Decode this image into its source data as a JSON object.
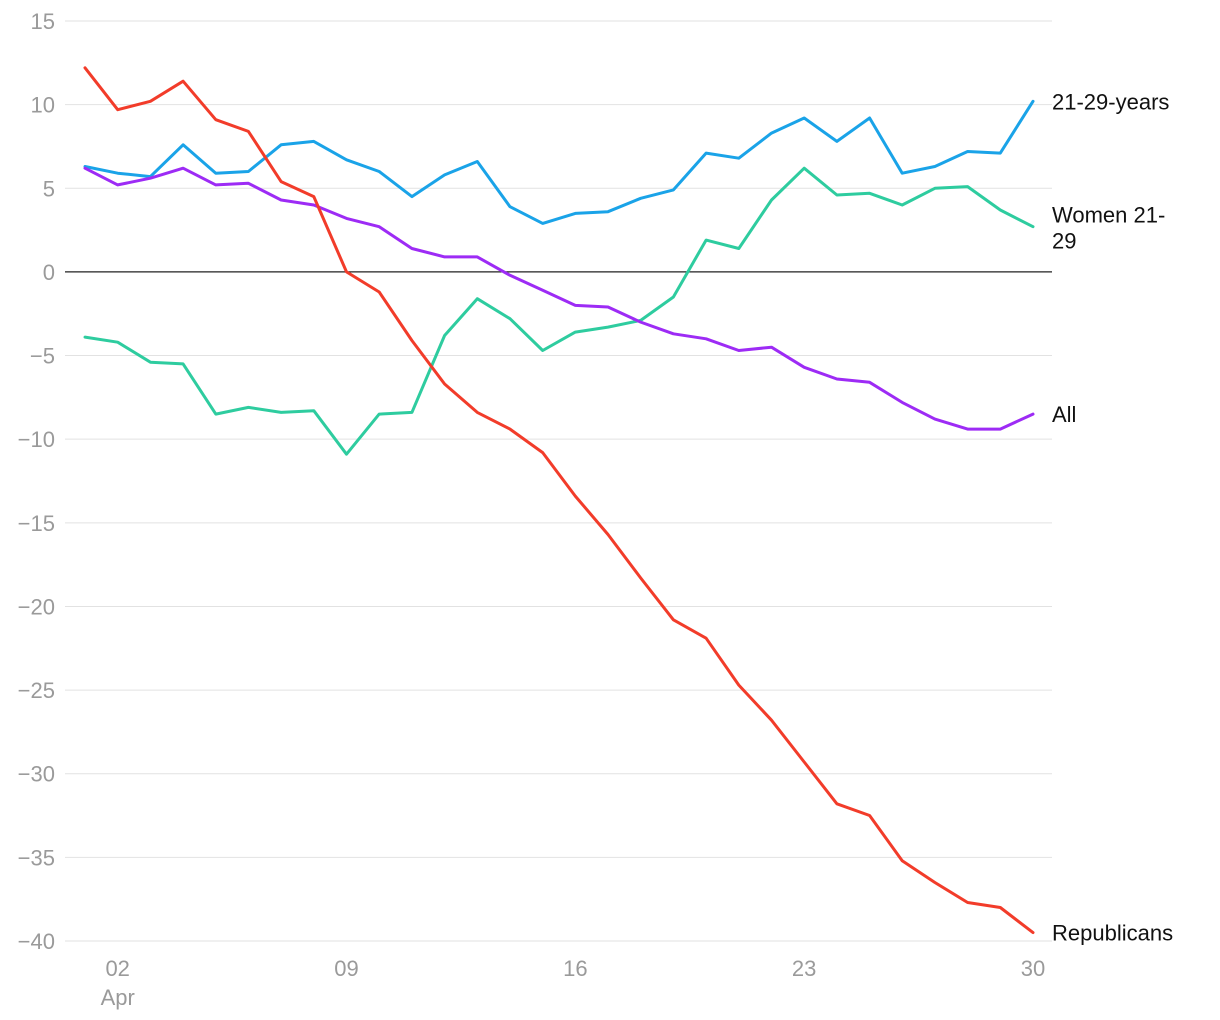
{
  "chart_data": {
    "type": "line",
    "title": "",
    "xlabel": "",
    "ylabel": "",
    "ylim": [
      -40,
      15
    ],
    "yticks": [
      15,
      10,
      5,
      0,
      -5,
      -10,
      -15,
      -20,
      -25,
      -30,
      -35,
      -40
    ],
    "y_tick_labels": [
      "15",
      "10",
      "5",
      "0",
      "−5",
      "−10",
      "−15",
      "−20",
      "−25",
      "−30",
      "−35",
      "−40"
    ],
    "x_days": [
      1,
      2,
      3,
      4,
      5,
      6,
      7,
      8,
      9,
      10,
      11,
      12,
      13,
      14,
      15,
      16,
      17,
      18,
      19,
      20,
      21,
      22,
      23,
      24,
      25,
      26,
      27,
      28,
      29,
      30
    ],
    "x_ticks": [
      {
        "day": 2,
        "label": "02",
        "sublabel": "Apr"
      },
      {
        "day": 9,
        "label": "09",
        "sublabel": ""
      },
      {
        "day": 16,
        "label": "16",
        "sublabel": ""
      },
      {
        "day": 23,
        "label": "23",
        "sublabel": ""
      },
      {
        "day": 30,
        "label": "30",
        "sublabel": ""
      }
    ],
    "series": [
      {
        "name": "21-29-years",
        "label_lines": [
          "21-29-years"
        ],
        "color": "#1aa3e8",
        "values": [
          6.3,
          5.9,
          5.7,
          7.6,
          5.9,
          6.0,
          7.6,
          7.8,
          6.7,
          6.0,
          4.5,
          5.8,
          6.6,
          3.9,
          2.9,
          3.5,
          3.6,
          4.4,
          4.9,
          7.1,
          6.8,
          8.3,
          9.2,
          7.8,
          9.2,
          5.9,
          6.3,
          7.2,
          7.1,
          10.2
        ]
      },
      {
        "name": "Women 21-29",
        "label_lines": [
          "Women 21-",
          "29"
        ],
        "color": "#2ecc9f",
        "values": [
          -3.9,
          -4.2,
          -5.4,
          -5.5,
          -8.5,
          -8.1,
          -8.4,
          -8.3,
          -10.9,
          -8.5,
          -8.4,
          -3.8,
          -1.6,
          -2.8,
          -4.7,
          -3.6,
          -3.3,
          -2.9,
          -1.5,
          1.9,
          1.4,
          4.3,
          6.2,
          4.6,
          4.7,
          4.0,
          5.0,
          5.1,
          3.7,
          2.7
        ]
      },
      {
        "name": "All",
        "label_lines": [
          "All"
        ],
        "color": "#9d2bf5",
        "values": [
          6.2,
          5.2,
          5.6,
          6.2,
          5.2,
          5.3,
          4.3,
          4.0,
          3.2,
          2.7,
          1.4,
          0.9,
          0.9,
          -0.2,
          -1.1,
          -2.0,
          -2.1,
          -3.0,
          -3.7,
          -4.0,
          -4.7,
          -4.5,
          -5.7,
          -6.4,
          -6.6,
          -7.8,
          -8.8,
          -9.4,
          -9.4,
          -8.5
        ]
      },
      {
        "name": "Republicans",
        "label_lines": [
          "Republicans"
        ],
        "color": "#f23c2a",
        "values": [
          12.2,
          9.7,
          10.2,
          11.4,
          9.1,
          8.4,
          5.4,
          4.5,
          0.0,
          -1.2,
          -4.1,
          -6.7,
          -8.4,
          -9.4,
          -10.8,
          -13.4,
          -15.7,
          -18.3,
          -20.8,
          -21.9,
          -24.7,
          -26.8,
          -29.3,
          -31.8,
          -32.5,
          -35.2,
          -36.5,
          -37.7,
          -38.0,
          -39.5
        ]
      }
    ]
  }
}
